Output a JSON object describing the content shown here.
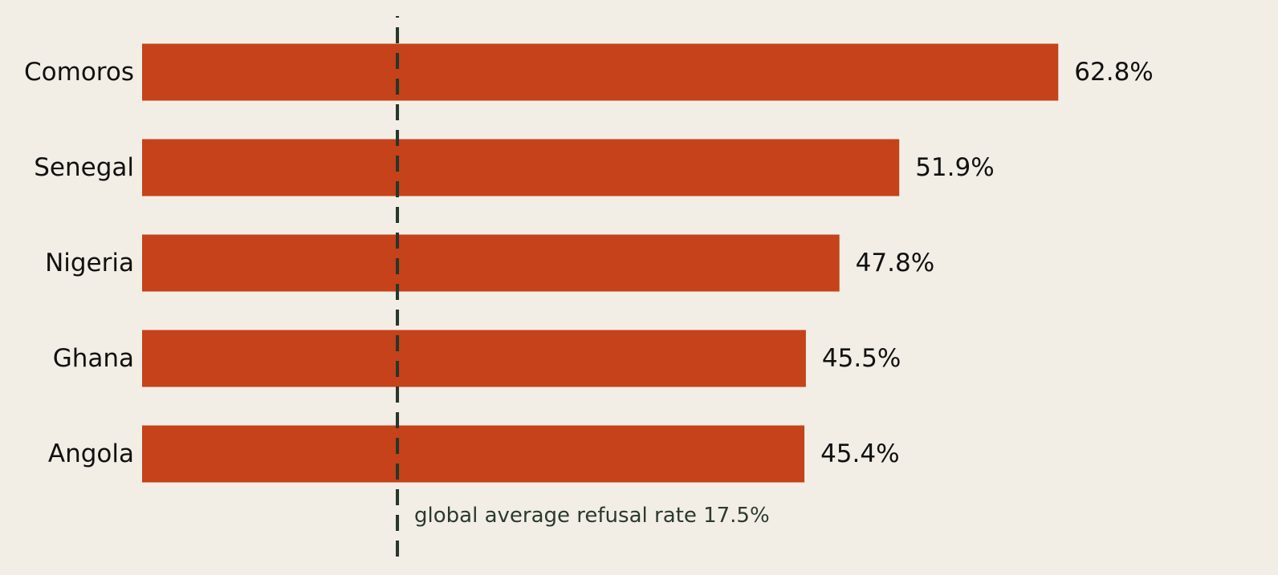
{
  "chart_data": {
    "type": "bar",
    "orientation": "horizontal",
    "categories": [
      "Comoros",
      "Senegal",
      "Nigeria",
      "Ghana",
      "Angola"
    ],
    "values": [
      62.8,
      51.9,
      47.8,
      45.5,
      45.4
    ],
    "value_labels": [
      "62.8%",
      "51.9%",
      "47.8%",
      "45.5%",
      "45.4%"
    ],
    "title": "",
    "xlabel": "",
    "ylabel": "",
    "xlim": [
      0,
      75
    ],
    "grid": false,
    "legend": "none",
    "reference_line": {
      "value": 17.5,
      "label": "global average refusal rate 17.5%",
      "style": "dashed"
    },
    "colors": {
      "bar": "#c5421a",
      "reference_line": "#26372a",
      "reference_text": "#2b3a2c",
      "background": "#f2eee6"
    }
  }
}
